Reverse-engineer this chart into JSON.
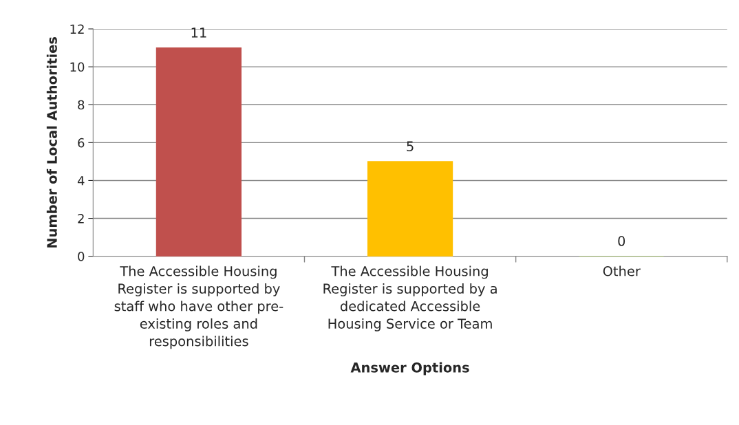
{
  "chart_data": {
    "type": "bar",
    "xlabel": "Answer Options",
    "ylabel": "Number of Local Authorities",
    "categories": [
      "The Accessible Housing\nRegister is supported by\nstaff who have other pre-\nexisting roles and\nresponsibilities",
      "The Accessible Housing\nRegister is supported by a\ndedicated Accessible\nHousing Service or Team",
      "Other"
    ],
    "values": [
      11,
      5,
      0
    ],
    "colors": [
      "#c0504d",
      "#ffc000",
      "#9bbb59"
    ],
    "ylim": [
      0,
      12
    ],
    "yticks": [
      0,
      2,
      4,
      6,
      8,
      10,
      12
    ],
    "grid": "y",
    "data_labels": true
  }
}
